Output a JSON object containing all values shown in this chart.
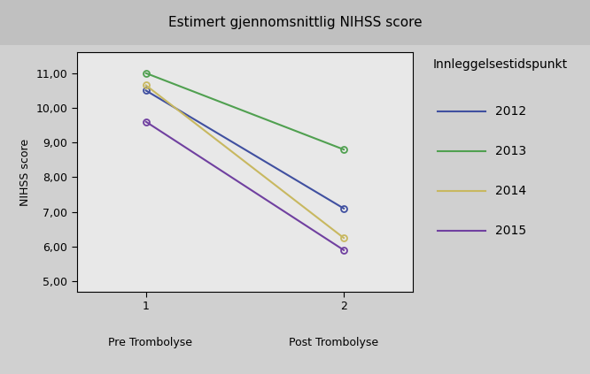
{
  "title": "Estimert gjennomsnittlig NIHSS score",
  "ylabel": "NIHSS score",
  "x_positions": [
    1,
    2
  ],
  "ylim": [
    4.7,
    11.6
  ],
  "yticks": [
    5.0,
    6.0,
    7.0,
    8.0,
    9.0,
    10.0,
    11.0
  ],
  "ytick_labels": [
    "5,00",
    "6,00",
    "7,00",
    "8,00",
    "9,00",
    "10,00",
    "11,00"
  ],
  "xticks": [
    1,
    2
  ],
  "xtick_labels": [
    "1",
    "2"
  ],
  "xlabel_pre": "Pre Trombolyse",
  "xlabel_post": "Post Trombolyse",
  "legend_title": "Innleggelsestidspunkt",
  "series": [
    {
      "label": "2012",
      "color": "#4050a0",
      "pre": 10.5,
      "post": 7.1
    },
    {
      "label": "2013",
      "color": "#50a050",
      "pre": 11.0,
      "post": 8.8
    },
    {
      "label": "2014",
      "color": "#c8b860",
      "pre": 10.65,
      "post": 6.25
    },
    {
      "label": "2015",
      "color": "#7040a0",
      "pre": 9.6,
      "post": 5.9
    }
  ],
  "plot_bg": "#e8e8e8",
  "fig_bg": "#d0d0d0",
  "title_bg": "#c0c0c0",
  "title_fontsize": 11,
  "axis_label_fontsize": 9,
  "tick_fontsize": 9,
  "legend_title_fontsize": 10,
  "legend_fontsize": 10
}
